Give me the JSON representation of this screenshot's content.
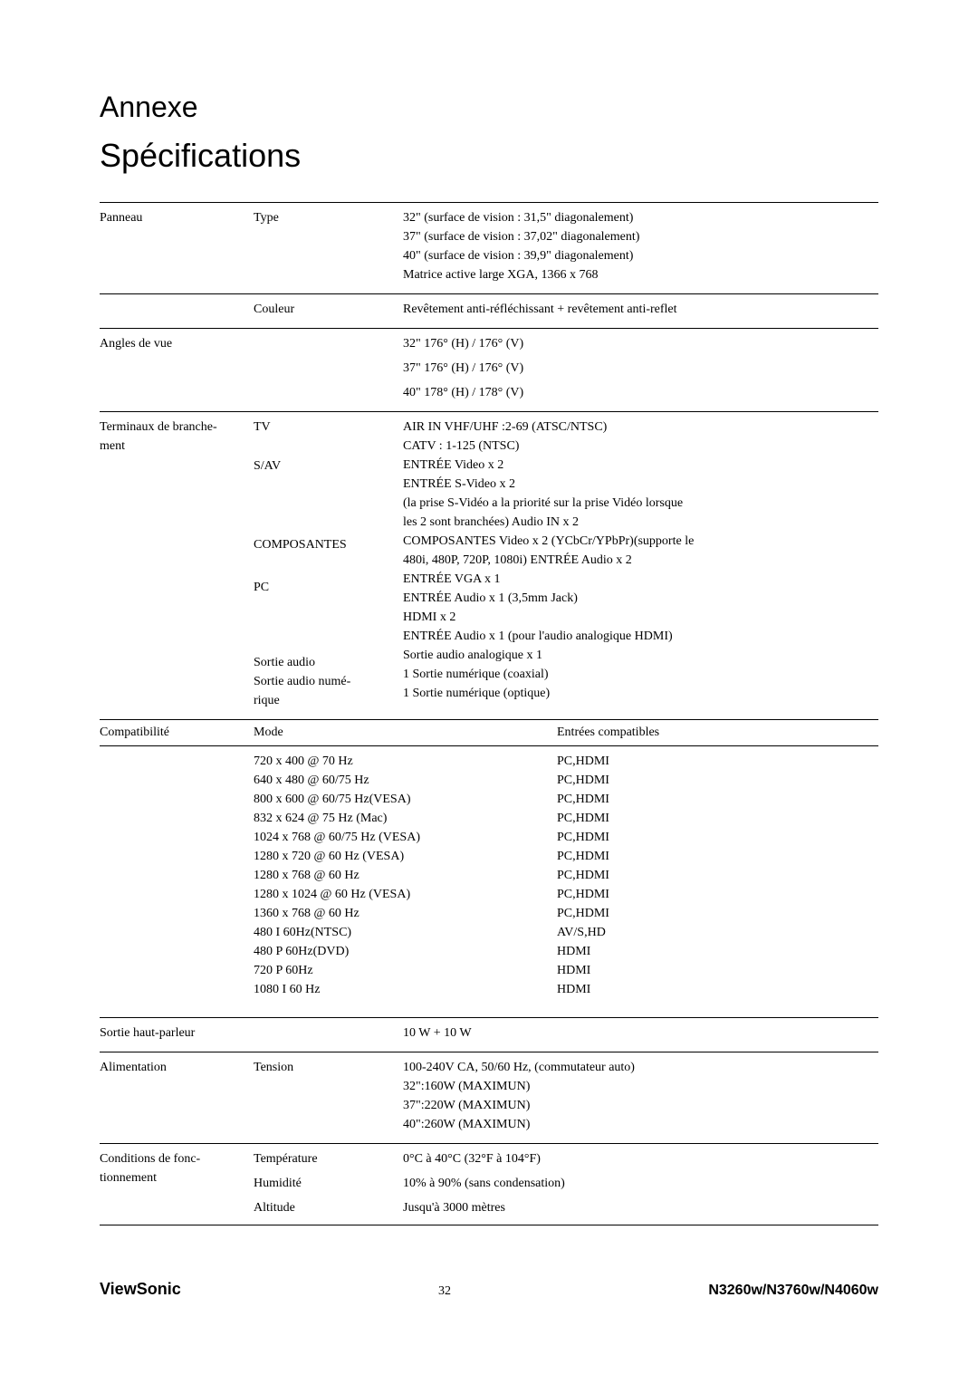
{
  "headings": {
    "annexe": "Annexe",
    "spec": "Spécifications"
  },
  "rows": {
    "panneau": {
      "label": "Panneau",
      "type_label": "Type",
      "type_val_1": "32\" (surface de vision : 31,5\" diagonalement)",
      "type_val_2": "37\" (surface de vision : 37,02\" diagonalement)",
      "type_val_3": "40\" (surface de vision : 39,9\" diagonalement)",
      "type_val_4": "Matrice active large XGA, 1366 x 768",
      "couleur_label": "Couleur",
      "couleur_val": "Revêtement anti-réfléchissant + revêtement anti-reflet"
    },
    "angles": {
      "label": "Angles de vue",
      "v1": "32\" 176° (H) / 176° (V)",
      "v2": "37\" 176° (H) / 176° (V)",
      "v3": "40\" 178° (H) / 178° (V)"
    },
    "term": {
      "label1": "Terminaux de branche-",
      "label2": "ment",
      "tv_label": "TV",
      "tv_v1": "AIR IN VHF/UHF :2-69 (ATSC/NTSC)",
      "tv_v2": "CATV : 1-125 (NTSC)",
      "sav_label": "S/AV",
      "sav_v1": "ENTRÉE Video x 2",
      "sav_v2": "ENTRÉE S-Video x 2",
      "sav_v3": "(la prise S-Vidéo a la priorité sur la prise Vidéo lorsque",
      "sav_v4": "les 2 sont branchées) Audio IN x 2",
      "comp_label": "COMPOSANTES",
      "comp_v1": "COMPOSANTES Video x 2 (YCbCr/YPbPr)(supporte le",
      "comp_v2": "480i, 480P, 720P, 1080i) ENTRÉE Audio x 2",
      "pc_label": "PC",
      "pc_v1": "ENTRÉE VGA x 1",
      "pc_v2": "ENTRÉE Audio x 1 (3,5mm Jack)",
      "pc_v3": "HDMI x 2",
      "pc_v4": "ENTRÉE Audio x 1 (pour l'audio analogique HDMI)",
      "sa_label": "Sortie audio",
      "sa_v": "Sortie audio analogique x 1",
      "san_label1": "Sortie audio numé-",
      "san_label2": "rique",
      "san_v1": "1 Sortie numérique (coaxial)",
      "san_v2": "1 Sortie numérique (optique)"
    },
    "compat": {
      "label": "Compatibilité",
      "mode_label": "Mode",
      "entries_label": "Entrées compatibles",
      "lines": [
        {
          "m": "720 x 400 @ 70 Hz",
          "e": "PC,HDMI"
        },
        {
          "m": "640 x 480 @ 60/75 Hz",
          "e": "PC,HDMI"
        },
        {
          "m": "800 x 600 @ 60/75 Hz(VESA)",
          "e": "PC,HDMI"
        },
        {
          "m": "832 x 624 @ 75 Hz  (Mac)",
          "e": "PC,HDMI"
        },
        {
          "m": "1024 x 768 @ 60/75 Hz (VESA)",
          "e": "PC,HDMI"
        },
        {
          "m": "1280 x 720 @ 60 Hz (VESA)",
          "e": "PC,HDMI"
        },
        {
          "m": "1280 x 768 @ 60 Hz",
          "e": "PC,HDMI"
        },
        {
          "m": "1280 x 1024 @ 60 Hz (VESA)",
          "e": "PC,HDMI"
        },
        {
          "m": "1360 x 768 @ 60 Hz",
          "e": "PC,HDMI"
        },
        {
          "m": "480 I 60Hz(NTSC)",
          "e": "AV/S,HD"
        },
        {
          "m": "480 P 60Hz(DVD)",
          "e": "HDMI"
        },
        {
          "m": "720 P 60Hz",
          "e": "HDMI"
        },
        {
          "m": "1080 I 60 Hz",
          "e": "HDMI"
        }
      ]
    },
    "haut": {
      "label": "Sortie haut-parleur",
      "val": "10 W + 10 W"
    },
    "alim": {
      "label": "Alimentation",
      "tension_label": "Tension",
      "v1": "100-240V CA, 50/60 Hz, (commutateur auto)",
      "v2": "32\":160W (MAXIMUN)",
      "v3": "37\":220W (MAXIMUN)",
      "v4": "40\":260W (MAXIMUN)"
    },
    "cond": {
      "label1": "Conditions de fonc-",
      "label2": "tionnement",
      "temp_label": "Température",
      "temp_val": "0°C à 40°C (32°F à 104°F)",
      "hum_label": "Humidité",
      "hum_val": "10% à 90% (sans condensation)",
      "alt_label": "Altitude",
      "alt_val": "Jusqu'à 3000 mètres"
    }
  },
  "footer": {
    "brand": "ViewSonic",
    "page": "32",
    "model": "N3260w/N3760w/N4060w"
  }
}
